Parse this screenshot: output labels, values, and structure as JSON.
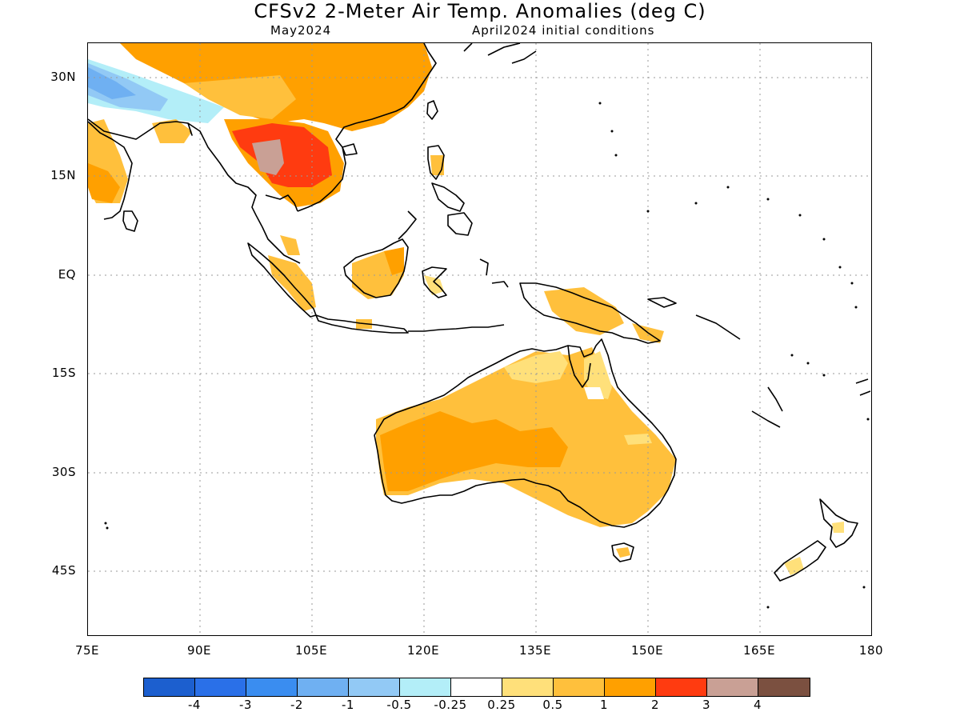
{
  "title": "CFSv2 2-Meter Air Temp. Anomalies (deg C)",
  "subtitle_left": "May2024",
  "subtitle_right": "April2024 initial conditions",
  "map": {
    "region": "Southeast Asia / Australia / Western Pacific",
    "lon_range": [
      75,
      180
    ],
    "lat_range": [
      -55,
      35
    ],
    "lat_ticks": [
      "30N",
      "15N",
      "EQ",
      "15S",
      "30S",
      "45S"
    ],
    "lon_ticks": [
      "75E",
      "90E",
      "105E",
      "120E",
      "135E",
      "150E",
      "165E",
      "180"
    ],
    "grid": true
  },
  "colorbar": {
    "colors": [
      "#1c5fcf",
      "#2a70e8",
      "#3a8df0",
      "#6fb0f2",
      "#92c9f5",
      "#b3eef8",
      "#ffffff",
      "#ffe07a",
      "#ffc03c",
      "#ffa000",
      "#ff3b10",
      "#c9a095",
      "#7b5040"
    ],
    "labels": [
      "-4",
      "-3",
      "-2",
      "-1",
      "-0.5",
      "-0.25",
      "0.25",
      "0.5",
      "1",
      "2",
      "3",
      "4"
    ]
  },
  "anomaly_regions": [
    {
      "name": "Australia interior",
      "category": "0.5 to 1"
    },
    {
      "name": "Western Australia",
      "category": "1 to 2"
    },
    {
      "name": "Northern Australia coast",
      "category": "0.25 to 0.5"
    },
    {
      "name": "China",
      "category": "1 to 2"
    },
    {
      "name": "Mainland Southeast Asia",
      "category": "2 to 3"
    },
    {
      "name": "Myanmar core",
      "category": "3 to 4"
    },
    {
      "name": "Tibetan Plateau",
      "category": "-1 to -0.25"
    },
    {
      "name": "Borneo",
      "category": "0.5 to 1"
    },
    {
      "name": "New Guinea",
      "category": "0.5 to 1"
    },
    {
      "name": "Sumatra",
      "category": "0.5 to 1"
    }
  ]
}
